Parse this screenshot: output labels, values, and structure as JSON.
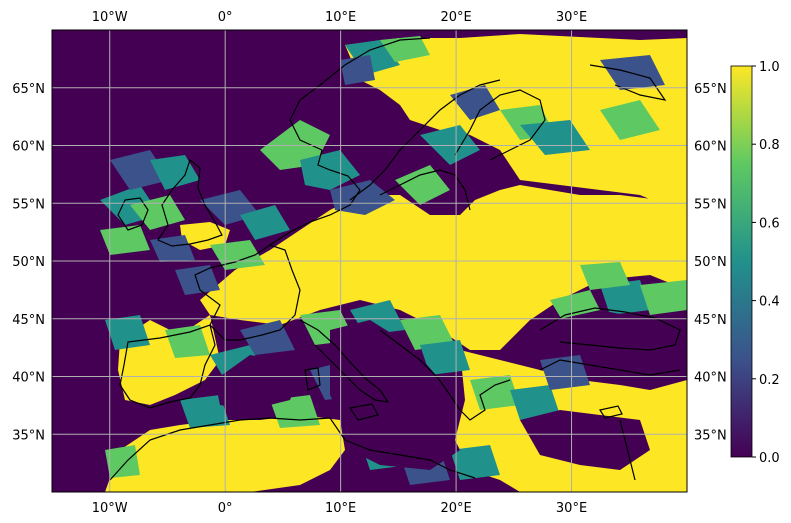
{
  "map": {
    "extent": {
      "lon_min": -15,
      "lon_max": 40,
      "lat_min": 30,
      "lat_max": 70
    },
    "lon_ticks": [
      {
        "value": -10,
        "label": "10°W"
      },
      {
        "value": 0,
        "label": "0°"
      },
      {
        "value": 10,
        "label": "10°E"
      },
      {
        "value": 20,
        "label": "20°E"
      },
      {
        "value": 30,
        "label": "30°E"
      }
    ],
    "lat_ticks": [
      {
        "value": 35,
        "label": "35°N"
      },
      {
        "value": 40,
        "label": "40°N"
      },
      {
        "value": 45,
        "label": "45°N"
      },
      {
        "value": 50,
        "label": "50°N"
      },
      {
        "value": 55,
        "label": "55°N"
      },
      {
        "value": 60,
        "label": "60°N"
      },
      {
        "value": 65,
        "label": "65°N"
      }
    ],
    "gridlines": true,
    "grid_color": "#b0b0b0",
    "colormap": "viridis",
    "colormap_stops": [
      "#440154",
      "#3b528b",
      "#21918c",
      "#5ec962",
      "#fde725"
    ],
    "background_value": 0.0,
    "field_value": 1.0
  },
  "colorbar": {
    "vmin": 0.0,
    "vmax": 1.0,
    "ticks": [
      {
        "value": 0.0,
        "label": "0.0"
      },
      {
        "value": 0.2,
        "label": "0.2"
      },
      {
        "value": 0.4,
        "label": "0.4"
      },
      {
        "value": 0.6,
        "label": "0.6"
      },
      {
        "value": 0.8,
        "label": "0.8"
      },
      {
        "value": 1.0,
        "label": "1.0"
      }
    ]
  }
}
